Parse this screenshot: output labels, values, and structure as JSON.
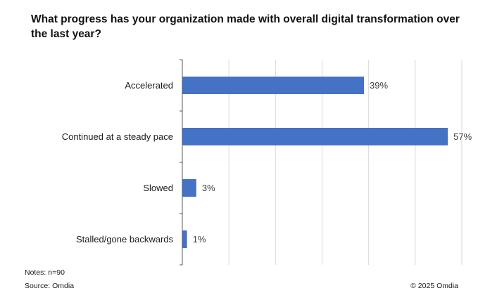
{
  "chart_data": {
    "type": "bar",
    "orientation": "horizontal",
    "title": "What progress has your organization made with overall digital transformation over the last year?",
    "categories": [
      "Accelerated",
      "Continued at a steady pace",
      "Slowed",
      "Stalled/gone backwards"
    ],
    "values": [
      39,
      57,
      3,
      1
    ],
    "value_labels": [
      "39%",
      "57%",
      "3%",
      "1%"
    ],
    "unit": "%",
    "xlim": [
      0,
      60
    ],
    "grid": true,
    "bar_color": "#4472C4",
    "xlabel": "",
    "ylabel": ""
  },
  "footer": {
    "notes": "Notes: n=90",
    "source": "Source: Omdia",
    "copyright": "© 2025 Omdia"
  }
}
